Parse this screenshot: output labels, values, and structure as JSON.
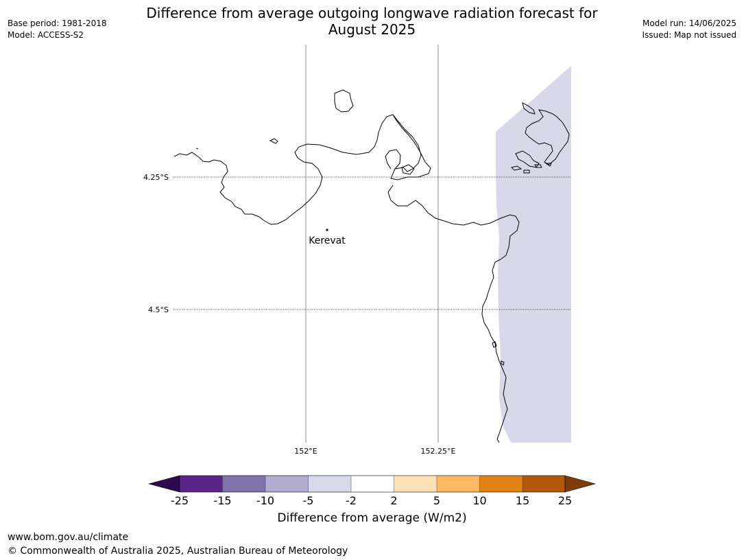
{
  "header": {
    "title_line1": "Difference from average outgoing longwave radiation forecast for",
    "title_line2": "August 2025",
    "base_period": "Base period: 1981-2018",
    "model": "Model: ACCESS-S2",
    "model_run": "Model run: 14/06/2025",
    "issued": "Issued: Map not issued"
  },
  "map": {
    "lat_labels": [
      "4.25°S",
      "4.5°S"
    ],
    "lon_labels": [
      "152°E",
      "152.25°E"
    ],
    "place": "Kerevat",
    "shaded_category_color": "#d8d8ea"
  },
  "colorbar": {
    "label": "Difference from average (W/m2)",
    "ticks": [
      "-25",
      "-15",
      "-10",
      "-5",
      "-2",
      "2",
      "5",
      "10",
      "15",
      "25"
    ],
    "colors": [
      "#2d0a4f",
      "#5a2587",
      "#8073ac",
      "#b2abd2",
      "#d8daeb",
      "#ffffff",
      "#fee0b6",
      "#fdb863",
      "#e08214",
      "#b35806",
      "#7f3b08"
    ]
  },
  "footer": {
    "url": "www.bom.gov.au/climate",
    "copyright": "© Commonwealth of Australia 2025, Australian Bureau of Meteorology"
  }
}
